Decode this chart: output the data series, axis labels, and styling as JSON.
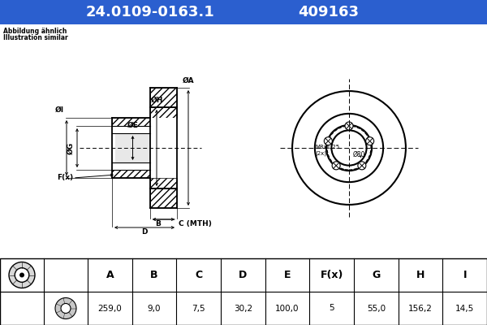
{
  "title_part": "24.0109-0163.1",
  "title_code": "409163",
  "header_bg": "#2b5fcf",
  "header_text_color": "#ffffff",
  "note_line1": "Abbildung ähnlich",
  "note_line2": "Illustration similar",
  "table_headers": [
    "A",
    "B",
    "C",
    "D",
    "E",
    "F(x)",
    "G",
    "H",
    "I"
  ],
  "table_values": [
    "259,0",
    "9,0",
    "7,5",
    "30,2",
    "100,0",
    "5",
    "55,0",
    "156,2",
    "14,5"
  ],
  "bg_color": "#ffffff",
  "diagram_bg": "#ffffff",
  "front_bolt_label": "M8x1,25\n(2x)",
  "front_center_label": "Ø80",
  "n_bolts": 5
}
